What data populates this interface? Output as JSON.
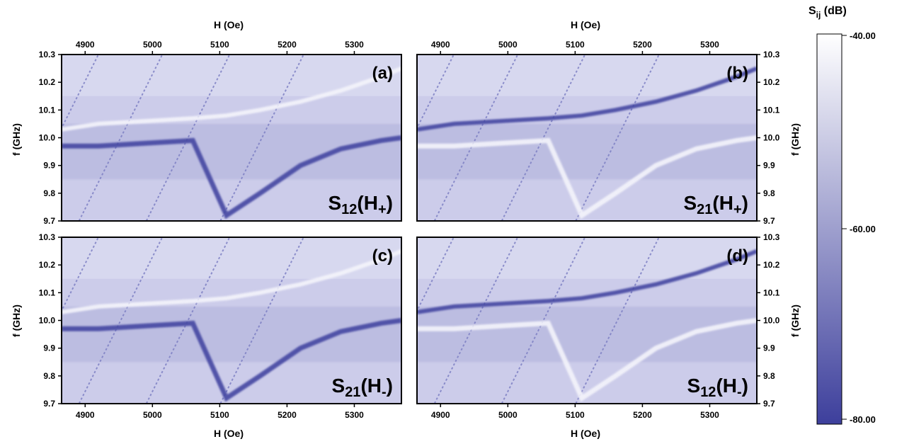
{
  "chart_data": {
    "type": "heatmap",
    "shared_axes": {
      "x_title": "H (Oe)",
      "x_range": [
        4865,
        5370
      ],
      "x_ticks": [
        "4900",
        "5000",
        "5100",
        "5200",
        "5300"
      ],
      "y_title": "f (GHz)",
      "y_range": [
        9.7,
        10.3
      ],
      "y_ticks": [
        "9.7",
        "9.8",
        "9.9",
        "10.0",
        "10.1",
        "10.2",
        "10.3"
      ]
    },
    "colorbar": {
      "title_main": "S",
      "title_sub": "ij",
      "title_unit": " (dB)",
      "range": [
        -80,
        -40
      ],
      "tick_labels": [
        "-40.00",
        "-60.00",
        "-80.00"
      ],
      "color_high": "#ffffff",
      "color_low": "#3d3f9c"
    },
    "panels": [
      {
        "label": "(a)",
        "sparam_main": "S",
        "sparam_sub": "12",
        "field_main": "H",
        "field_sub": "+",
        "dip_branch": "lower"
      },
      {
        "label": "(b)",
        "sparam_main": "S",
        "sparam_sub": "21",
        "field_main": "H",
        "field_sub": "+",
        "dip_branch": "upper"
      },
      {
        "label": "(c)",
        "sparam_main": "S",
        "sparam_sub": "21",
        "field_main": "H",
        "field_sub": "-",
        "dip_branch": "lower"
      },
      {
        "label": "(d)",
        "sparam_main": "S",
        "sparam_sub": "12",
        "field_main": "H",
        "field_sub": "-",
        "dip_branch": "upper"
      }
    ],
    "main_mode": {
      "description_points_H": [
        4865,
        4920,
        4990,
        5060,
        5110,
        5160,
        5220,
        5280,
        5340,
        5370
      ],
      "upper_branch_f": [
        10.03,
        10.05,
        10.06,
        10.07,
        10.08,
        10.1,
        10.13,
        10.17,
        10.22,
        10.25
      ],
      "lower_branch_f": [
        9.97,
        9.97,
        9.98,
        9.99,
        9.72,
        9.8,
        9.9,
        9.96,
        9.99,
        10.0
      ]
    },
    "side_modes_H_at_10GHz": [
      4885,
      4980,
      5080,
      5190
    ]
  }
}
